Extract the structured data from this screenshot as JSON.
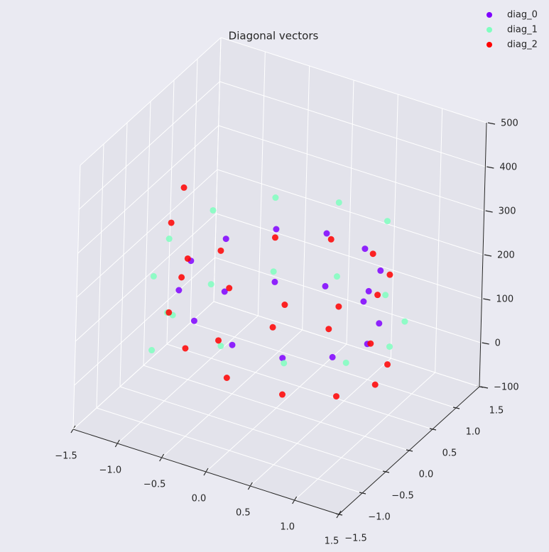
{
  "chart_data": {
    "type": "scatter3d",
    "title": "Diagonal vectors",
    "xlim": [
      -1.5,
      1.5
    ],
    "ylim": [
      -1.5,
      1.5
    ],
    "zlim": [
      -100,
      500
    ],
    "xticks": [
      {
        "value": -1.5,
        "label": "−1.5"
      },
      {
        "value": -1.0,
        "label": "−1.0"
      },
      {
        "value": -0.5,
        "label": "−0.5"
      },
      {
        "value": 0,
        "label": "0.0"
      },
      0.5,
      {
        "value": 1.0,
        "label": "1.0"
      },
      1.5
    ],
    "yticks": [
      {
        "value": -1.5,
        "label": "−1.5"
      },
      {
        "value": -1.0,
        "label": "−1.0"
      },
      {
        "value": -0.5,
        "label": "−0.5"
      },
      {
        "value": 0,
        "label": "0.0"
      },
      0.5,
      {
        "value": 1.0,
        "label": "1.0"
      },
      1.5
    ],
    "zticks": [
      {
        "value": -100,
        "label": "−100"
      },
      0,
      100,
      200,
      300,
      400,
      500
    ],
    "grid": true,
    "legend": "upper right",
    "series": [
      {
        "name": "diag_0",
        "color": "#7f00ff",
        "x": [
          1,
          0.87,
          0.5,
          0,
          -0.5,
          -0.87,
          -1,
          -0.87,
          -0.5,
          0,
          0.5,
          0.87,
          1,
          0.87,
          0.5,
          0,
          -0.5,
          -0.87
        ],
        "y": [
          0,
          0.5,
          0.87,
          1,
          0.87,
          0.5,
          0,
          -0.5,
          -0.87,
          -1,
          -0.87,
          -0.5,
          0,
          0.5,
          0.87,
          1,
          0.87,
          0.5
        ],
        "z": [
          230,
          220,
          210,
          200,
          190,
          180,
          170,
          160,
          150,
          140,
          130,
          120,
          110,
          100,
          90,
          80,
          70,
          60
        ]
      },
      {
        "name": "diag_1",
        "color": "#80ffc0",
        "x": [
          0.63,
          0,
          -0.63,
          -1.09,
          -1.25,
          -1.09,
          -0.63,
          0,
          0.63,
          1.09,
          1.25,
          1.09,
          0.63,
          0,
          -0.63,
          -1.09,
          -1.25,
          -1.09
        ],
        "y": [
          1.09,
          1.25,
          1.09,
          0.63,
          0,
          -0.63,
          -1.09,
          -1.25,
          -1.09,
          -0.63,
          0,
          0.63,
          1.09,
          1.25,
          1.09,
          0.63,
          0,
          -0.63
        ],
        "z": [
          260,
          246,
          232,
          218,
          204,
          190,
          176,
          162,
          148,
          134,
          120,
          106,
          92,
          78,
          64,
          50,
          36,
          22
        ]
      },
      {
        "name": "diag_2",
        "color": "#ff0000",
        "x": [
          -1.1,
          -0.95,
          -0.55,
          0,
          0.55,
          0.95,
          1.1,
          0.95,
          0.55,
          0,
          -0.55,
          -0.95,
          -1.1,
          -0.95,
          -0.55,
          0,
          0.55,
          0.95,
          1.1,
          0.95,
          0.55,
          0,
          -0.55,
          -0.95
        ],
        "y": [
          0,
          -0.55,
          -0.95,
          -1.1,
          -0.95,
          -0.55,
          0,
          0.55,
          0.95,
          1.1,
          0.95,
          0.55,
          0,
          -0.55,
          -0.95,
          -1.1,
          -0.95,
          -0.55,
          0,
          0.55,
          0.95,
          1.1,
          0.95,
          0.55
        ],
        "z": [
          330,
          313,
          296,
          279,
          262,
          245,
          228,
          211,
          194,
          177,
          160,
          143,
          126,
          109,
          92,
          75,
          58,
          41,
          24,
          7,
          -10,
          -27,
          -44,
          -61
        ]
      }
    ]
  }
}
